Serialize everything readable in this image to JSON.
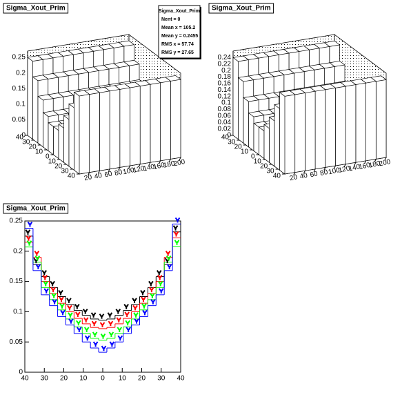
{
  "chart_data": [
    {
      "type": "lego",
      "title": "Sigma_Xout_Prim",
      "xbins": [
        0,
        20,
        40,
        60,
        80,
        100,
        120,
        140,
        160,
        180,
        200
      ],
      "ybins": [
        -40,
        -32,
        -24,
        -16,
        -8,
        0,
        8,
        16,
        24,
        32,
        40
      ],
      "values": [
        [
          0.25,
          0.25,
          0.25,
          0.25,
          0.25,
          0.25,
          0.25,
          0.25,
          0.25,
          0.25
        ],
        [
          0.2,
          0.2,
          0.2,
          0.2,
          0.2,
          0.2,
          0.2,
          0.2,
          0.2,
          0.2
        ],
        [
          0.15,
          0.15,
          0.15,
          0.15,
          0.15,
          0.15,
          0.15,
          0.15,
          0.15,
          0.15
        ],
        [
          0.11,
          0.11,
          0.11,
          0.11,
          0.11,
          0.11,
          0.11,
          0.11,
          0.11,
          0.11
        ],
        [
          0.09,
          0.09,
          0.09,
          0.09,
          0.09,
          0.09,
          0.09,
          0.09,
          0.09,
          0.09
        ],
        [
          0.09,
          0.09,
          0.09,
          0.09,
          0.09,
          0.09,
          0.09,
          0.09,
          0.09,
          0.09
        ],
        [
          0.11,
          0.11,
          0.11,
          0.11,
          0.11,
          0.11,
          0.11,
          0.11,
          0.11,
          0.11
        ],
        [
          0.15,
          0.15,
          0.15,
          0.15,
          0.15,
          0.15,
          0.15,
          0.15,
          0.15,
          0.15
        ],
        [
          0.2,
          0.2,
          0.2,
          0.2,
          0.2,
          0.2,
          0.2,
          0.2,
          0.2,
          0.2
        ],
        [
          0.25,
          0.25,
          0.25,
          0.25,
          0.25,
          0.25,
          0.25,
          0.25,
          0.25,
          0.25
        ]
      ],
      "xlim": [
        0,
        200
      ],
      "ylim": [
        -40,
        40
      ],
      "zlim": [
        0,
        0.27
      ],
      "xticks": [
        20,
        40,
        60,
        80,
        100,
        120,
        140,
        160,
        180,
        200
      ],
      "yticks": [
        {
          "value": -40,
          "label": "40"
        },
        {
          "value": -30,
          "label": "30"
        },
        {
          "value": -20,
          "label": "20"
        },
        {
          "value": -10,
          "label": "10"
        },
        0,
        {
          "value": 10,
          "label": "10"
        },
        {
          "value": 20,
          "label": "20"
        },
        {
          "value": 30,
          "label": "30"
        },
        {
          "value": 40,
          "label": "40"
        }
      ],
      "zticks": [
        0,
        0.05,
        0.1,
        0.15,
        0.2,
        0.25
      ],
      "stats": {
        "title": "Sigma_Xout_Prim",
        "entries": [
          "Nent = 0",
          "Mean x = 105.2",
          "Mean y = 0.2455",
          "RMS x = 57.74",
          "RMS y = 27.65"
        ]
      }
    },
    {
      "type": "lego",
      "title": "Sigma_Xout_Prim",
      "xbins": [
        0,
        20,
        40,
        60,
        80,
        100,
        120,
        140,
        160,
        180,
        200
      ],
      "ybins": [
        -40,
        -32,
        -24,
        -16,
        -8,
        0,
        8,
        16,
        24,
        32,
        40
      ],
      "values": [
        [
          0.24,
          0.24,
          0.24,
          0.24,
          0.24,
          0.24,
          0.24,
          0.24,
          0.24,
          0.24
        ],
        [
          0.19,
          0.19,
          0.19,
          0.19,
          0.19,
          0.19,
          0.19,
          0.19,
          0.19,
          0.19
        ],
        [
          0.14,
          0.14,
          0.14,
          0.14,
          0.14,
          0.14,
          0.14,
          0.14,
          0.14,
          0.14
        ],
        [
          0.105,
          0.105,
          0.105,
          0.105,
          0.105,
          0.105,
          0.105,
          0.105,
          0.105,
          0.105
        ],
        [
          0.085,
          0.085,
          0.085,
          0.085,
          0.085,
          0.085,
          0.085,
          0.085,
          0.085,
          0.085
        ],
        [
          0.085,
          0.085,
          0.085,
          0.085,
          0.085,
          0.085,
          0.085,
          0.085,
          0.085,
          0.085
        ],
        [
          0.105,
          0.105,
          0.105,
          0.105,
          0.105,
          0.105,
          0.105,
          0.105,
          0.105,
          0.105
        ],
        [
          0.14,
          0.14,
          0.14,
          0.14,
          0.14,
          0.14,
          0.14,
          0.14,
          0.14,
          0.14
        ],
        [
          0.19,
          0.19,
          0.19,
          0.19,
          0.19,
          0.19,
          0.19,
          0.19,
          0.19,
          0.19
        ],
        [
          0.24,
          0.24,
          0.24,
          0.24,
          0.24,
          0.24,
          0.24,
          0.24,
          0.24,
          0.24
        ]
      ],
      "xlim": [
        0,
        200
      ],
      "ylim": [
        -40,
        40
      ],
      "zlim": [
        0,
        0.26
      ],
      "xticks": [
        20,
        40,
        60,
        80,
        100,
        120,
        140,
        160,
        180,
        200
      ],
      "yticks": [
        {
          "value": -40,
          "label": "40"
        },
        {
          "value": -30,
          "label": "30"
        },
        {
          "value": -20,
          "label": "20"
        },
        {
          "value": -10,
          "label": "10"
        },
        0,
        {
          "value": 10,
          "label": "10"
        },
        {
          "value": 20,
          "label": "20"
        },
        {
          "value": 30,
          "label": "30"
        },
        {
          "value": 40,
          "label": "40"
        }
      ],
      "zticks": [
        0,
        0.02,
        0.04,
        0.06,
        0.08,
        0.1,
        0.12,
        0.14,
        0.16,
        0.18,
        0.2,
        0.22,
        0.24
      ]
    },
    {
      "type": "step",
      "title": "Sigma_Xout_Prim",
      "x": [
        -37.89,
        -33.68,
        -29.47,
        -25.26,
        -21.05,
        -16.84,
        -12.63,
        -8.42,
        -4.21,
        0,
        4.21,
        8.42,
        12.63,
        16.84,
        21.05,
        25.26,
        29.47,
        33.68,
        37.89
      ],
      "series": [
        {
          "color": "#000000",
          "values": [
            0.225,
            0.178,
            0.158,
            0.14,
            0.125,
            0.112,
            0.102,
            0.094,
            0.088,
            0.086,
            0.088,
            0.094,
            0.102,
            0.112,
            0.125,
            0.14,
            0.158,
            0.178,
            0.232
          ]
        },
        {
          "color": "#ff0000",
          "values": [
            0.215,
            0.19,
            0.15,
            0.13,
            0.114,
            0.1,
            0.089,
            0.08,
            0.074,
            0.072,
            0.074,
            0.08,
            0.089,
            0.1,
            0.114,
            0.13,
            0.15,
            0.19,
            0.222
          ]
        },
        {
          "color": "#00ff00",
          "values": [
            0.207,
            0.182,
            0.14,
            0.12,
            0.103,
            0.088,
            0.075,
            0.064,
            0.056,
            0.053,
            0.056,
            0.064,
            0.075,
            0.088,
            0.103,
            0.12,
            0.14,
            0.182,
            0.208
          ]
        },
        {
          "color": "#0000ff",
          "values": [
            0.238,
            0.168,
            0.128,
            0.11,
            0.092,
            0.078,
            0.064,
            0.05,
            0.04,
            0.033,
            0.04,
            0.05,
            0.064,
            0.078,
            0.092,
            0.11,
            0.128,
            0.168,
            0.245
          ]
        }
      ],
      "xlim": [
        -40,
        40
      ],
      "ylim": [
        0,
        0.25
      ],
      "xticks": [
        {
          "value": -40,
          "label": "40"
        },
        {
          "value": -30,
          "label": "30"
        },
        {
          "value": -20,
          "label": "20"
        },
        {
          "value": -10,
          "label": "10"
        },
        0,
        {
          "value": 10,
          "label": "10"
        },
        {
          "value": 20,
          "label": "20"
        },
        {
          "value": 30,
          "label": "30"
        },
        {
          "value": 40,
          "label": "40"
        }
      ],
      "yticks": [
        0,
        0.05,
        0.1,
        0.15,
        0.2,
        0.25
      ]
    }
  ]
}
